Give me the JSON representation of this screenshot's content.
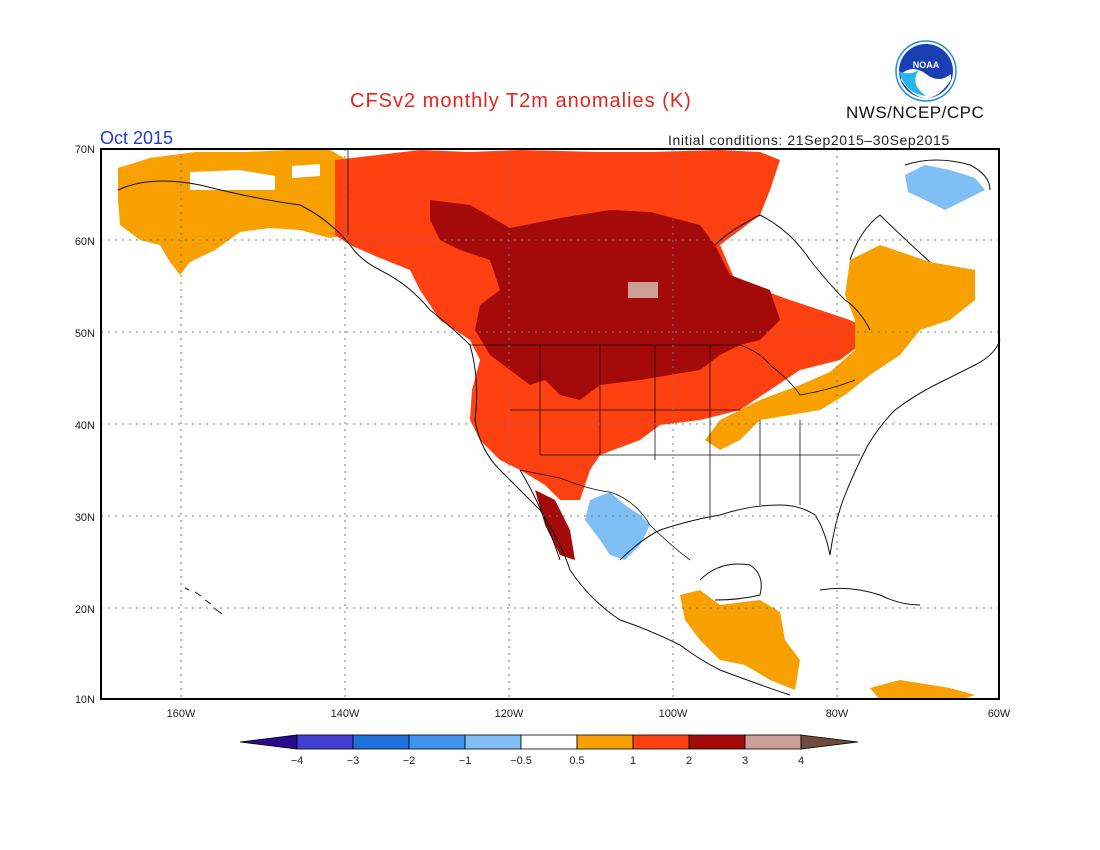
{
  "header": {
    "title": "CFSv2 monthly T2m anomalies (K)",
    "date": "Oct 2015",
    "initial_conditions": "Initial conditions: 21Sep2015–30Sep2015",
    "agency": "NWS/NCEP/CPC",
    "logo_text": "NOAA"
  },
  "map": {
    "lat_labels": [
      "70N",
      "60N",
      "50N",
      "40N",
      "30N",
      "20N",
      "10N"
    ],
    "lon_labels": [
      "160W",
      "140W",
      "120W",
      "100W",
      "80W",
      "60W"
    ],
    "lat_range": [
      10,
      70
    ],
    "lon_range": [
      -170,
      -60
    ],
    "grid": true
  },
  "colorbar": {
    "labels": [
      "−4",
      "−3",
      "−2",
      "−1",
      "−0.5",
      "0.5",
      "1",
      "2",
      "3",
      "4"
    ],
    "colors": [
      "#2a0b8c",
      "#3f3fd0",
      "#1e6fdc",
      "#3e94ef",
      "#7fbff5",
      "#ffffff",
      "#f7a000",
      "#ff4010",
      "#a50a0a",
      "#c9a093",
      "#6e4b3c"
    ]
  }
}
